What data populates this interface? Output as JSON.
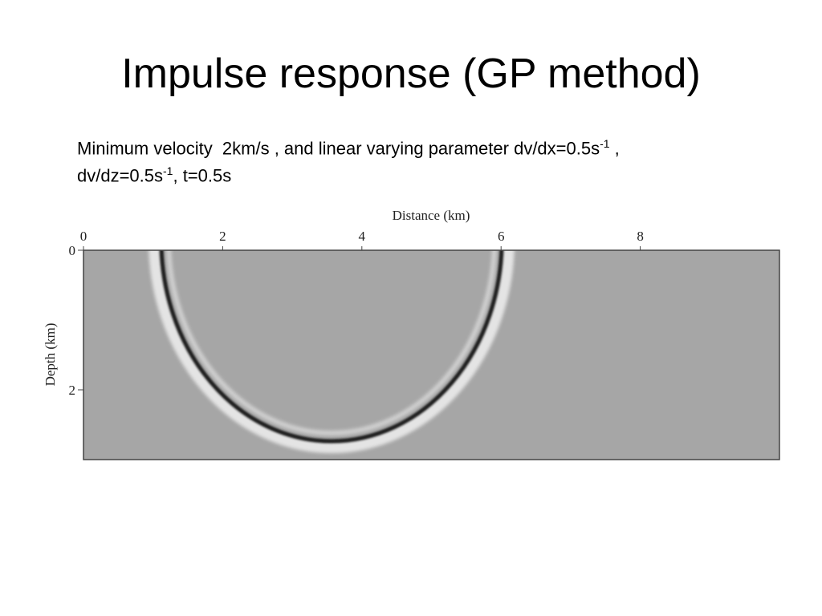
{
  "header": {
    "title": "Impulse response (GP method)"
  },
  "caption": {
    "line1": [
      "Minimum velocity  2km/s , and linear varying parameter dv/dx=0.5s",
      "-1",
      " ,"
    ],
    "line2": [
      "dv/dz=0.5s",
      "-1",
      ", t=0.5s"
    ]
  },
  "figure": {
    "x_label": "Distance (km)",
    "y_label": "Depth (km)",
    "xticks": [
      0,
      2,
      4,
      6,
      8
    ],
    "yticks": [
      0,
      2
    ]
  }
}
